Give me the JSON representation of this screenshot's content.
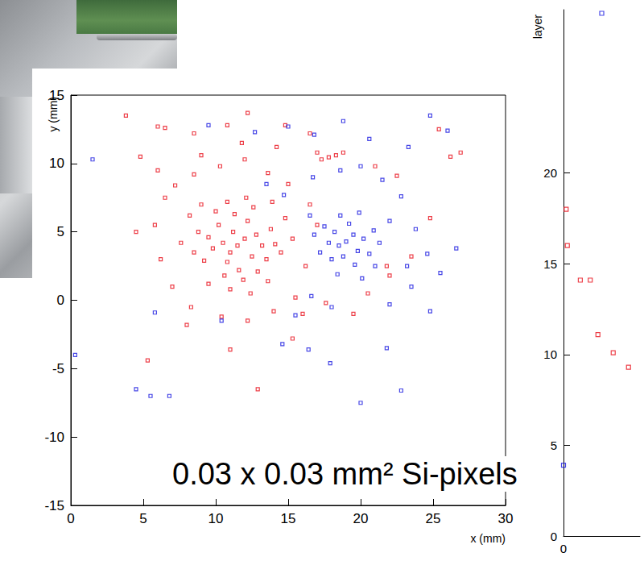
{
  "chart_data": [
    {
      "type": "scatter",
      "xlabel": "x (mm)",
      "ylabel": "y (mm)",
      "annotation": "0.03 x 0.03 mm² Si-pixels",
      "xlim": [
        0,
        30
      ],
      "xticks": [
        0,
        5,
        10,
        15,
        20,
        25,
        30
      ],
      "ylim": [
        -15,
        15
      ],
      "yticks": [
        -15,
        -10,
        -5,
        0,
        5,
        10,
        15
      ],
      "grid": false,
      "marker": "square",
      "series": [
        {
          "color": "#e8101c",
          "x": [
            11.5,
            11,
            12,
            10.5,
            12.5,
            11.2,
            10.8,
            12.8,
            9.8,
            13.2,
            11.6,
            10.2,
            12.2,
            9.5,
            13.5,
            11.9,
            10.6,
            12.9,
            9.2,
            13.8,
            8.8,
            14.1,
            11.3,
            10,
            12.6,
            8.5,
            14.5,
            11,
            12.4,
            9.5,
            13.6,
            8.2,
            14.8,
            7.6,
            15.3,
            10.8,
            12.1,
            9,
            13.9,
            6,
            7.2,
            8.5,
            10.3,
            12,
            13.6,
            15,
            16.5,
            17,
            16.2,
            15.5,
            14,
            12.2,
            10.4,
            8.3,
            7,
            6.2,
            5.8,
            6.5,
            4.5,
            3.8,
            6,
            6.5,
            8.5,
            10.8,
            12.2,
            14.8,
            16.5,
            17,
            21,
            22.5,
            25.4,
            26.2,
            24.8,
            23.5,
            22,
            19.5,
            17.6,
            15.3,
            11,
            8,
            5.3,
            12.9,
            16,
            20.5,
            21.8,
            9,
            11.8,
            14.2,
            26.9,
            4.8,
            17.3,
            17.8,
            18.3,
            18.8
          ],
          "values": [
            4,
            3.5,
            4.5,
            4.2,
            3.2,
            5,
            2.8,
            4.8,
            3.8,
            4,
            2.2,
            5.5,
            5.8,
            4.6,
            3,
            1.5,
            1.8,
            2.1,
            2.9,
            5.2,
            5,
            4.1,
            6.3,
            6.5,
            6.8,
            3.5,
            3.5,
            0.8,
            0.5,
            1.2,
            1.4,
            6.2,
            6,
            4.2,
            4.5,
            7.2,
            7.5,
            7,
            7.2,
            9.5,
            8.4,
            9.2,
            9.8,
            10.3,
            9.3,
            8.5,
            7,
            5.5,
            2.5,
            0.2,
            -0.8,
            -1.5,
            -1.2,
            -0.5,
            1,
            3,
            5.5,
            7.5,
            5,
            13.5,
            12.7,
            12.6,
            12.2,
            12.8,
            13.7,
            12.8,
            12.2,
            10.8,
            9.8,
            9.1,
            12.5,
            10.5,
            6,
            3.2,
            1.8,
            -1,
            -0.2,
            -2.8,
            -3.6,
            -1.8,
            -4.4,
            -6.5,
            -1,
            0.5,
            2.5,
            10.6,
            11.5,
            11.2,
            10.8,
            10.5,
            10.3,
            10.45,
            10.6,
            10.8
          ]
        },
        {
          "color": "#1a1ae0",
          "x": [
            19,
            18.5,
            19.5,
            18.2,
            19.8,
            18.8,
            20.2,
            17.8,
            19.2,
            20.6,
            18,
            19.6,
            17.5,
            20.9,
            18.6,
            21.3,
            17.2,
            19.9,
            21,
            16.8,
            18.4,
            20.1,
            22,
            16.5,
            16.7,
            18.6,
            20,
            21.5,
            22.8,
            23.8,
            24.6,
            25.5,
            23.5,
            22,
            24.8,
            18,
            16.6,
            15.5,
            14.7,
            13.5,
            9.5,
            12.7,
            15,
            16.8,
            18.8,
            20.6,
            23.3,
            24.8,
            26,
            1.5,
            0.3,
            6.8,
            4.5,
            5.5,
            22.8,
            20,
            21.8,
            14.6,
            16.4,
            17.9,
            10.4,
            5.8,
            23.2,
            26.6
          ],
          "values": [
            4.3,
            4,
            4.8,
            5,
            3.6,
            3.2,
            4.5,
            4.2,
            5.6,
            3.4,
            3,
            2.6,
            5.4,
            5.1,
            6.2,
            4.2,
            3.5,
            6.4,
            2.5,
            4.8,
            1.9,
            1.6,
            5.8,
            6.2,
            9,
            9.5,
            9.8,
            8.8,
            7.6,
            5.2,
            3.4,
            2,
            1,
            -0.3,
            -0.8,
            -0.5,
            0.3,
            -1.1,
            7.7,
            8.5,
            12.8,
            12.3,
            12.7,
            12.1,
            13.1,
            11.8,
            11.2,
            13.5,
            12.4,
            10.3,
            -4,
            -7,
            -6.5,
            -7,
            -6.6,
            -7.5,
            -3.5,
            -3.2,
            -3.6,
            -4.6,
            -1.5,
            -0.9,
            2.5,
            3.8
          ]
        }
      ]
    },
    {
      "type": "scatter",
      "ylabel": "layer",
      "xlim": [
        0,
        2
      ],
      "xticks": [
        0
      ],
      "ylim": [
        0,
        29
      ],
      "yticks": [
        0,
        5,
        10,
        15,
        20
      ],
      "grid": false,
      "marker": "square",
      "series": [
        {
          "color": "#e8101c",
          "x": [
            0.07,
            0.1,
            0.44,
            0.7,
            0.9,
            1.3,
            1.7
          ],
          "values": [
            18,
            16,
            14.1,
            14.1,
            11.1,
            10.1,
            9.3
          ]
        },
        {
          "color": "#1a1ae0",
          "x": [
            0,
            1.0
          ],
          "values": [
            3.9,
            28.8
          ]
        }
      ]
    }
  ]
}
